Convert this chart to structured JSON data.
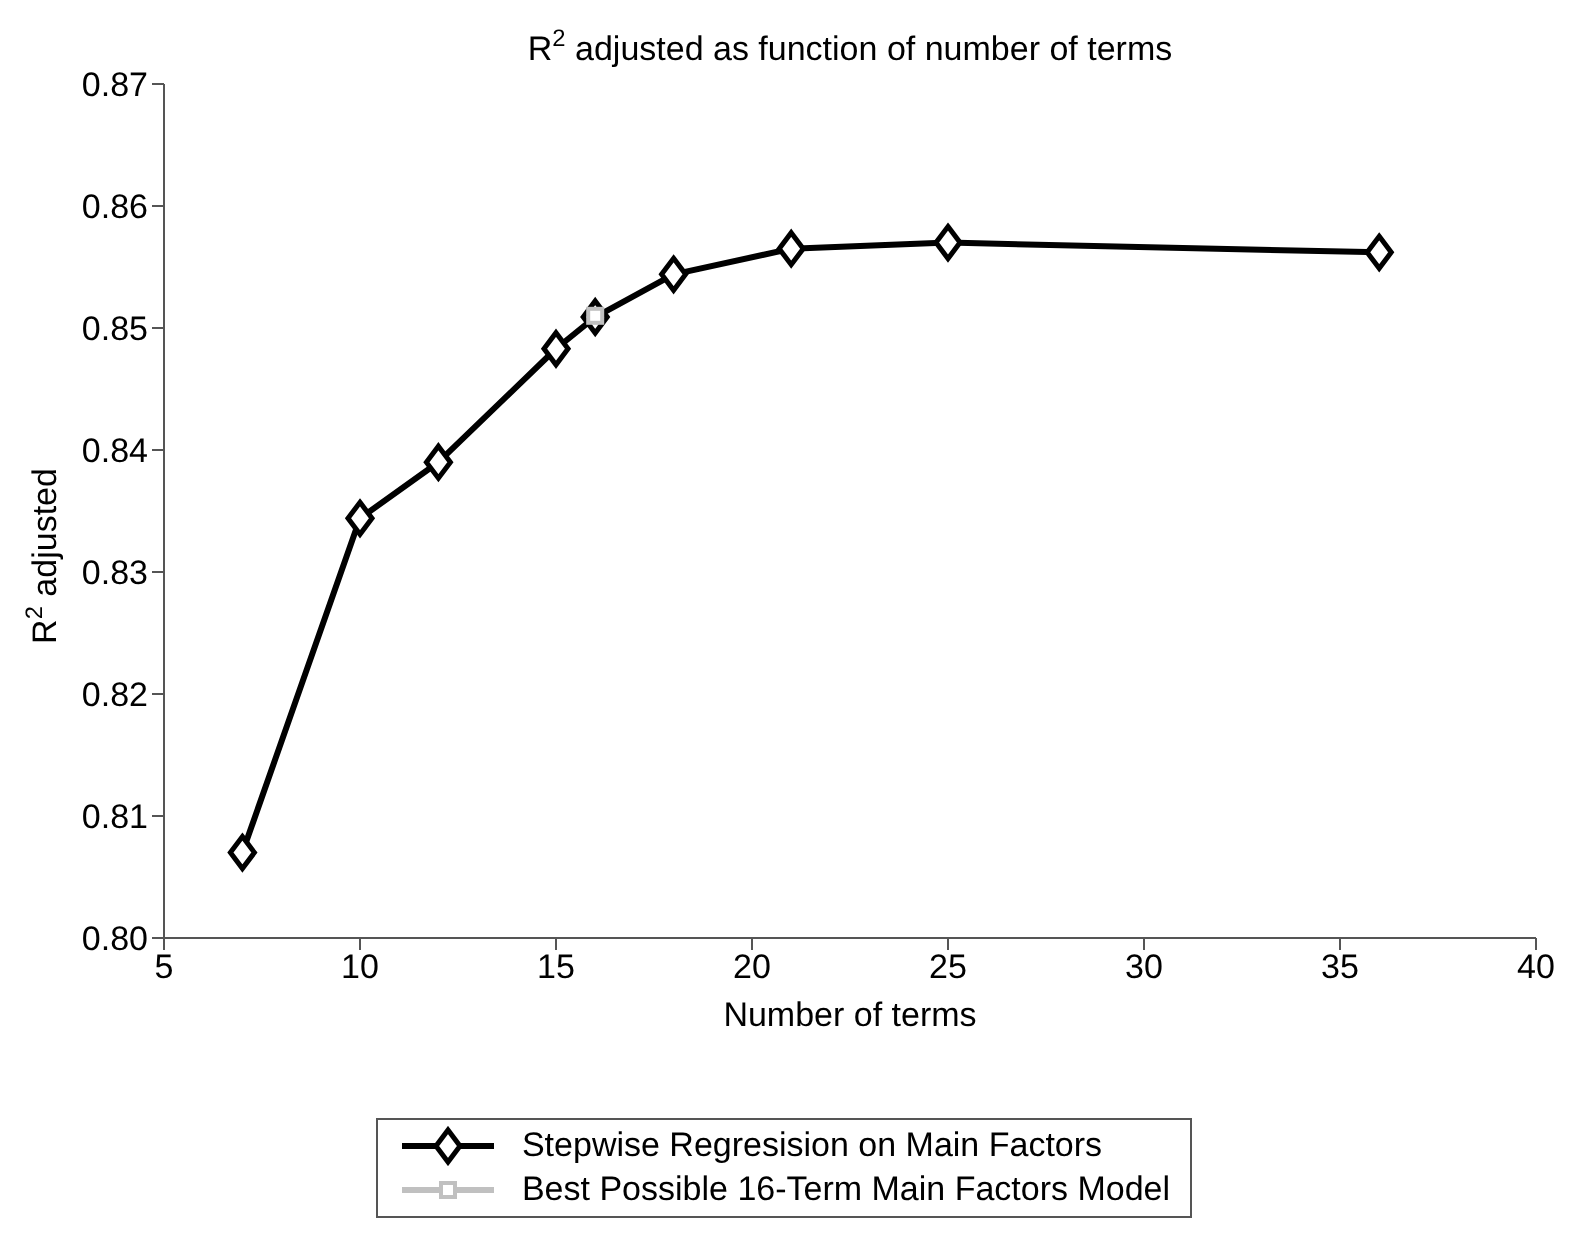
{
  "chart_data": {
    "type": "line",
    "title": "R$^{2}$ adjusted as function of number of terms",
    "xlabel": "Number of terms",
    "ylabel": "R$^{2}$ adjusted",
    "xlim": [
      5,
      40
    ],
    "xticks": [
      5,
      10,
      15,
      20,
      25,
      30,
      35,
      40
    ],
    "ylim": [
      0.8,
      0.87
    ],
    "yticks": [
      {
        "value": 0.8,
        "label": "0.80"
      },
      0.81,
      0.82,
      0.83,
      0.84,
      0.85,
      0.86,
      0.87
    ],
    "grid": false,
    "legend": "bottom",
    "line_style": "solid",
    "series": [
      {
        "name": "Stepwise Regresision on Main Factors",
        "color": "#000000",
        "marker": "diamond",
        "x": [
          7,
          10,
          12,
          15,
          16,
          18,
          21,
          25,
          36
        ],
        "values": [
          0.807,
          0.8344,
          0.839,
          0.8483,
          0.8509,
          0.8544,
          0.8565,
          0.857,
          0.8562
        ]
      },
      {
        "name": "Best Possible 16-Term Main Factors Model",
        "color": "#c0c0c0",
        "marker": "square",
        "x": [
          16
        ],
        "values": [
          0.851
        ]
      }
    ]
  }
}
